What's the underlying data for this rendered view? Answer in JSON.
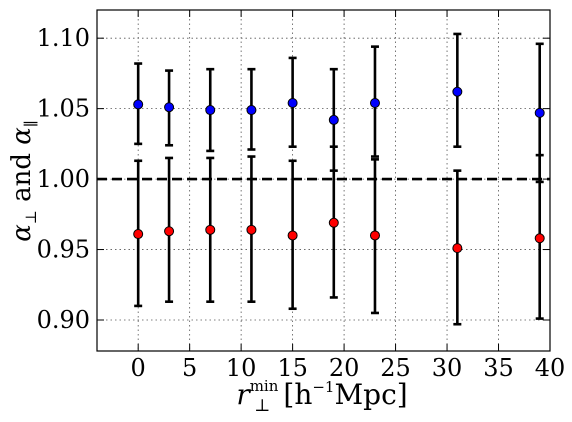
{
  "chart_data": {
    "type": "scatter",
    "title": "",
    "xlabel": {
      "base": "r",
      "sup": "min",
      "sub": "⊥",
      "rest": "[h",
      "rest_sup": "−1",
      "units": "Mpc]"
    },
    "ylabel": {
      "a1": "α",
      "a1_sub": "⊥",
      "and": " and ",
      "a2": "α",
      "a2_sub": "∥"
    },
    "xlim": [
      -4,
      40
    ],
    "ylim": [
      0.878,
      1.12
    ],
    "x_ticks": [
      0,
      5,
      10,
      15,
      20,
      25,
      30,
      35,
      40
    ],
    "y_ticks": [
      0.9,
      0.95,
      1.0,
      1.05,
      1.1
    ],
    "y_tick_labels": [
      "0.90",
      "0.95",
      "1.00",
      "1.05",
      "1.10"
    ],
    "grid": true,
    "reference_line": {
      "y": 1.0,
      "style": "dashed",
      "color": "#000000"
    },
    "series": [
      {
        "color": "#0000ff",
        "x": [
          0,
          3,
          7,
          11,
          15,
          19,
          23,
          31,
          39
        ],
        "y": [
          1.053,
          1.051,
          1.049,
          1.049,
          1.054,
          1.042,
          1.054,
          1.062,
          1.047
        ],
        "yerr_low": [
          1.025,
          1.024,
          1.02,
          1.021,
          1.023,
          1.006,
          1.016,
          1.023,
          0.998
        ],
        "yerr_high": [
          1.082,
          1.077,
          1.078,
          1.078,
          1.086,
          1.078,
          1.094,
          1.103,
          1.096
        ]
      },
      {
        "color": "#ff0000",
        "x": [
          0,
          3,
          7,
          11,
          15,
          19,
          23,
          31,
          39
        ],
        "y": [
          0.961,
          0.963,
          0.964,
          0.964,
          0.96,
          0.969,
          0.96,
          0.951,
          0.958
        ],
        "yerr_low": [
          0.91,
          0.913,
          0.913,
          0.913,
          0.908,
          0.916,
          0.905,
          0.897,
          0.901
        ],
        "yerr_high": [
          1.013,
          1.015,
          1.015,
          1.016,
          1.013,
          1.023,
          1.014,
          1.006,
          1.017
        ]
      }
    ]
  }
}
